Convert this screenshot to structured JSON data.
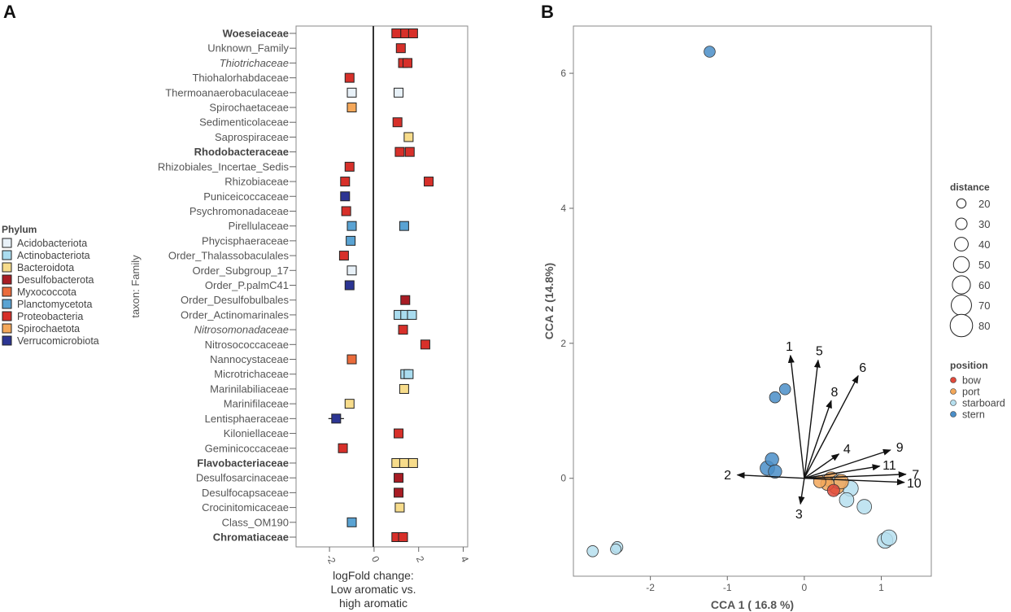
{
  "chart_data": [
    {
      "type": "dot-forest",
      "panel_label": "A",
      "ylabel": "taxon: Family",
      "xlabel_lines": [
        "logFold change:",
        "Low aromatic vs.",
        "high aromatic"
      ],
      "xlim": [
        -3.5,
        4.2
      ],
      "xticks": [
        -2,
        0,
        2,
        4
      ],
      "tick_labels": [
        "-2",
        "0",
        "2",
        "4"
      ],
      "legend": {
        "title": "Phylum",
        "items": [
          {
            "name": "Acidobacteriota",
            "color": "#e8f1f8"
          },
          {
            "name": "Actinobacteriota",
            "color": "#a9dcef"
          },
          {
            "name": "Bacteroidota",
            "color": "#f7dc8b"
          },
          {
            "name": "Desulfobacterota",
            "color": "#a81c24"
          },
          {
            "name": "Myxococcota",
            "color": "#ea6b3b"
          },
          {
            "name": "Planctomycetota",
            "color": "#5aa3d3"
          },
          {
            "name": "Proteobacteria",
            "color": "#d7302a"
          },
          {
            "name": "Spirochaetota",
            "color": "#f5a85a"
          },
          {
            "name": "Verrucomicrobiota",
            "color": "#2c3593"
          }
        ]
      },
      "rows": [
        {
          "label": "Woeseiaceae",
          "style": "bold",
          "phylum": "Proteobacteria",
          "values": [
            1.0,
            1.4,
            1.75
          ],
          "err": 0.12
        },
        {
          "label": "Unknown_Family",
          "style": "normal",
          "phylum": "Proteobacteria",
          "values": [
            1.2
          ],
          "err": 0
        },
        {
          "label": "Thiotrichaceae",
          "style": "italic",
          "phylum": "Proteobacteria",
          "values": [
            1.3,
            1.5
          ],
          "err": 0
        },
        {
          "label": "Thiohalorhabdaceae",
          "style": "normal",
          "phylum": "Proteobacteria",
          "values": [
            -1.1
          ],
          "err": 0
        },
        {
          "label": "Thermoanaerobaculaceae",
          "style": "normal",
          "phylum": "Acidobacteriota",
          "values": [
            -1.0,
            1.1
          ],
          "err": 0.12
        },
        {
          "label": "Spirochaetaceae",
          "style": "normal",
          "phylum": "Spirochaetota",
          "values": [
            -1.0
          ],
          "err": 0
        },
        {
          "label": "Sedimenticolaceae",
          "style": "normal",
          "phylum": "Proteobacteria",
          "values": [
            1.05
          ],
          "err": 0
        },
        {
          "label": "Saprospiraceae",
          "style": "normal",
          "phylum": "Bacteroidota",
          "values": [
            1.55
          ],
          "err": 0
        },
        {
          "label": "Rhodobacteraceae",
          "style": "bold",
          "phylum": "Proteobacteria",
          "values": [
            1.15,
            1.6
          ],
          "err": 0
        },
        {
          "label": "Rhizobiales_Incertae_Sedis",
          "style": "normal",
          "phylum": "Proteobacteria",
          "values": [
            -1.1
          ],
          "err": 0
        },
        {
          "label": "Rhizobiaceae",
          "style": "normal",
          "phylum": "Proteobacteria",
          "values": [
            -1.3,
            2.45
          ],
          "err": 0
        },
        {
          "label": "Puniceicoccaceae",
          "style": "normal",
          "phylum": "Verrucomicrobiota",
          "values": [
            -1.3
          ],
          "err": 0
        },
        {
          "label": "Psychromonadaceae",
          "style": "normal",
          "phylum": "Proteobacteria",
          "values": [
            -1.25
          ],
          "err": 0
        },
        {
          "label": "Pirellulaceae",
          "style": "normal",
          "phylum": "Planctomycetota",
          "values": [
            -1.0,
            1.35
          ],
          "err": 0.1
        },
        {
          "label": "Phycisphaeraceae",
          "style": "normal",
          "phylum": "Planctomycetota",
          "values": [
            -1.05
          ],
          "err": 0
        },
        {
          "label": "Order_Thalassobaculales",
          "style": "normal",
          "phylum": "Proteobacteria",
          "values": [
            -1.35
          ],
          "err": 0
        },
        {
          "label": "Order_Subgroup_17",
          "style": "normal",
          "phylum": "Acidobacteriota",
          "values": [
            -1.0
          ],
          "err": 0
        },
        {
          "label": "Order_P.palmC41",
          "style": "normal",
          "phylum": "Verrucomicrobiota",
          "values": [
            -1.1
          ],
          "err": 0
        },
        {
          "label": "Order_Desulfobulbales",
          "style": "normal",
          "phylum": "Desulfobacterota",
          "values": [
            1.4
          ],
          "err": 0
        },
        {
          "label": "Order_Actinomarinales",
          "style": "normal",
          "phylum": "Actinobacteriota",
          "values": [
            1.1,
            1.4,
            1.7
          ],
          "err": 0.12
        },
        {
          "label": "Nitrosomonadaceae",
          "style": "italic",
          "phylum": "Proteobacteria",
          "values": [
            1.3
          ],
          "err": 0
        },
        {
          "label": "Nitrosococcaceae",
          "style": "normal",
          "phylum": "Proteobacteria",
          "values": [
            2.3
          ],
          "err": 0
        },
        {
          "label": "Nannocystaceae",
          "style": "normal",
          "phylum": "Myxococcota",
          "values": [
            -1.0
          ],
          "err": 0
        },
        {
          "label": "Microtrichaceae",
          "style": "normal",
          "phylum": "Actinobacteriota",
          "values": [
            1.4,
            1.55
          ],
          "err": 0
        },
        {
          "label": "Marinilabiliaceae",
          "style": "normal",
          "phylum": "Bacteroidota",
          "values": [
            1.35
          ],
          "err": 0
        },
        {
          "label": "Marinifilaceae",
          "style": "normal",
          "phylum": "Bacteroidota",
          "values": [
            -1.1
          ],
          "err": 0
        },
        {
          "label": "Lentisphaeraceae",
          "style": "normal",
          "phylum": "Verrucomicrobiota",
          "values": [
            -1.7
          ],
          "err": 0.35
        },
        {
          "label": "Kiloniellaceae",
          "style": "normal",
          "phylum": "Proteobacteria",
          "values": [
            1.1
          ],
          "err": 0
        },
        {
          "label": "Geminicoccaceae",
          "style": "normal",
          "phylum": "Proteobacteria",
          "values": [
            -1.4
          ],
          "err": 0
        },
        {
          "label": "Flavobacteriaceae",
          "style": "bold",
          "phylum": "Bacteroidota",
          "values": [
            1.0,
            1.35,
            1.75
          ],
          "err": 0
        },
        {
          "label": "Desulfosarcinaceae",
          "style": "normal",
          "phylum": "Desulfobacterota",
          "values": [
            1.1
          ],
          "err": 0
        },
        {
          "label": "Desulfocapsaceae",
          "style": "normal",
          "phylum": "Desulfobacterota",
          "values": [
            1.1
          ],
          "err": 0
        },
        {
          "label": "Crocinitomicaceae",
          "style": "normal",
          "phylum": "Bacteroidota",
          "values": [
            1.15
          ],
          "err": 0
        },
        {
          "label": "Class_OM190",
          "style": "normal",
          "phylum": "Planctomycetota",
          "values": [
            -1.0
          ],
          "err": 0.1
        },
        {
          "label": "Chromatiaceae",
          "style": "bold",
          "phylum": "Proteobacteria",
          "values": [
            1.0,
            1.3
          ],
          "err": 0.1
        }
      ]
    },
    {
      "type": "scatter",
      "panel_label": "B",
      "xlabel": "CCA 1  ( 16.8 %)",
      "ylabel": "CCA 2 (14.8%)",
      "xlim": [
        -3.0,
        1.65
      ],
      "ylim": [
        -1.45,
        6.7
      ],
      "xticks": [
        -2,
        -1,
        0,
        1
      ],
      "xtick_labels": [
        "-2",
        "-1",
        "0",
        "1"
      ],
      "yticks": [
        0,
        2,
        4,
        6
      ],
      "ytick_labels": [
        "0",
        "2",
        "4",
        "6"
      ],
      "size_legend": {
        "title": "distance",
        "values": [
          20,
          30,
          40,
          50,
          60,
          70,
          80
        ]
      },
      "color_legend": {
        "title": "position",
        "items": [
          {
            "name": "bow",
            "color": "#e0493b"
          },
          {
            "name": "port",
            "color": "#f2a75a"
          },
          {
            "name": "starboard",
            "color": "#b6dfee"
          },
          {
            "name": "stern",
            "color": "#4a8ec8"
          }
        ]
      },
      "points": [
        {
          "x": -1.23,
          "y": 6.32,
          "position": "stern",
          "distance": 25
        },
        {
          "x": -2.75,
          "y": -1.08,
          "position": "starboard",
          "distance": 25
        },
        {
          "x": -2.43,
          "y": -1.02,
          "position": "starboard",
          "distance": 25
        },
        {
          "x": -2.45,
          "y": -1.05,
          "position": "starboard",
          "distance": 22
        },
        {
          "x": -0.25,
          "y": 1.32,
          "position": "stern",
          "distance": 25
        },
        {
          "x": -0.38,
          "y": 1.2,
          "position": "stern",
          "distance": 25
        },
        {
          "x": -0.42,
          "y": 0.28,
          "position": "stern",
          "distance": 35
        },
        {
          "x": -0.48,
          "y": 0.15,
          "position": "stern",
          "distance": 40
        },
        {
          "x": -0.38,
          "y": 0.1,
          "position": "stern",
          "distance": 35
        },
        {
          "x": 1.05,
          "y": -0.92,
          "position": "starboard",
          "distance": 45
        },
        {
          "x": 1.1,
          "y": -0.88,
          "position": "starboard",
          "distance": 45
        },
        {
          "x": 0.78,
          "y": -0.42,
          "position": "starboard",
          "distance": 40
        },
        {
          "x": 0.55,
          "y": -0.32,
          "position": "starboard",
          "distance": 40
        },
        {
          "x": 0.6,
          "y": -0.15,
          "position": "starboard",
          "distance": 45
        },
        {
          "x": 0.45,
          "y": -0.05,
          "position": "starboard",
          "distance": 40
        },
        {
          "x": 0.2,
          "y": -0.05,
          "position": "port",
          "distance": 30
        },
        {
          "x": 0.3,
          "y": -0.08,
          "position": "port",
          "distance": 35
        },
        {
          "x": 0.38,
          "y": -0.18,
          "position": "bow",
          "distance": 30
        },
        {
          "x": 0.42,
          "y": -0.12,
          "position": "port",
          "distance": 45
        },
        {
          "x": 0.48,
          "y": -0.05,
          "position": "port",
          "distance": 40
        },
        {
          "x": 0.35,
          "y": -0.02,
          "position": "port",
          "distance": 45
        }
      ],
      "vectors": [
        {
          "label": "1",
          "x": -0.18,
          "y": 1.82
        },
        {
          "label": "5",
          "x": 0.18,
          "y": 1.75
        },
        {
          "label": "6",
          "x": 0.7,
          "y": 1.52
        },
        {
          "label": "8",
          "x": 0.35,
          "y": 1.15
        },
        {
          "label": "4",
          "x": 0.45,
          "y": 0.36
        },
        {
          "label": "9",
          "x": 1.12,
          "y": 0.42
        },
        {
          "label": "11",
          "x": 0.98,
          "y": 0.18
        },
        {
          "label": "7",
          "x": 1.32,
          "y": 0.06
        },
        {
          "label": "10",
          "x": 1.3,
          "y": -0.06
        },
        {
          "label": "2",
          "x": -0.87,
          "y": 0.05
        },
        {
          "label": "3",
          "x": -0.05,
          "y": -0.38
        }
      ]
    }
  ]
}
